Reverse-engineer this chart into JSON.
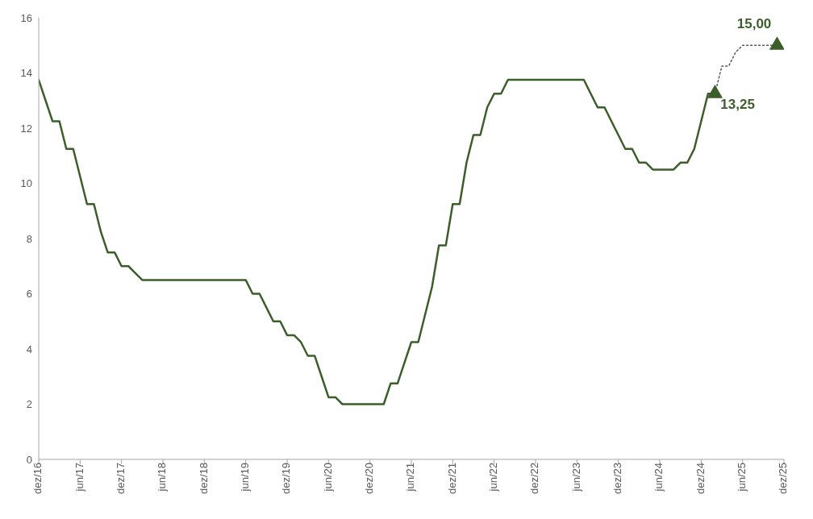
{
  "chart_data": {
    "type": "line",
    "xlim": [
      "2016-12",
      "2025-12"
    ],
    "xticks": [
      {
        "value": "2016-12",
        "label": "dez/16"
      },
      {
        "value": "2017-06",
        "label": "jun/17"
      },
      {
        "value": "2017-12",
        "label": "dez/17"
      },
      {
        "value": "2018-06",
        "label": "jun/18"
      },
      {
        "value": "2018-12",
        "label": "dez/18"
      },
      {
        "value": "2019-06",
        "label": "jun/19"
      },
      {
        "value": "2019-12",
        "label": "dez/19"
      },
      {
        "value": "2020-06",
        "label": "jun/20"
      },
      {
        "value": "2020-12",
        "label": "dez/20"
      },
      {
        "value": "2021-06",
        "label": "jun/21"
      },
      {
        "value": "2021-12",
        "label": "dez/21"
      },
      {
        "value": "2022-06",
        "label": "jun/22"
      },
      {
        "value": "2022-12",
        "label": "dez/22"
      },
      {
        "value": "2023-06",
        "label": "jun/23"
      },
      {
        "value": "2023-12",
        "label": "dez/23"
      },
      {
        "value": "2024-06",
        "label": "jun/24"
      },
      {
        "value": "2024-12",
        "label": "dez/24"
      },
      {
        "value": "2025-06",
        "label": "jun/25"
      },
      {
        "value": "2025-12",
        "label": "dez/25"
      }
    ],
    "ylim": [
      0,
      16
    ],
    "yticks": [
      0,
      2,
      4,
      6,
      8,
      10,
      12,
      14,
      16
    ],
    "grid": false,
    "series": [
      {
        "color": "#3b5e2b",
        "line_style": "solid",
        "marker": "none",
        "x": [
          "2016-12",
          "2017-01",
          "2017-02",
          "2017-03",
          "2017-04",
          "2017-05",
          "2017-06",
          "2017-07",
          "2017-08",
          "2017-09",
          "2017-10",
          "2017-11",
          "2017-12",
          "2018-01",
          "2018-02",
          "2018-03",
          "2018-06",
          "2018-12",
          "2019-06",
          "2019-07",
          "2019-08",
          "2019-09",
          "2019-10",
          "2019-11",
          "2019-12",
          "2020-01",
          "2020-02",
          "2020-03",
          "2020-04",
          "2020-05",
          "2020-06",
          "2020-07",
          "2020-08",
          "2021-02",
          "2021-03",
          "2021-04",
          "2021-05",
          "2021-06",
          "2021-07",
          "2021-08",
          "2021-09",
          "2021-10",
          "2021-11",
          "2021-12",
          "2022-01",
          "2022-02",
          "2022-03",
          "2022-04",
          "2022-05",
          "2022-06",
          "2022-07",
          "2022-08",
          "2023-07",
          "2023-08",
          "2023-09",
          "2023-10",
          "2023-11",
          "2023-12",
          "2024-01",
          "2024-02",
          "2024-03",
          "2024-04",
          "2024-05",
          "2024-08",
          "2024-09",
          "2024-10",
          "2024-11",
          "2024-12",
          "2025-01",
          "2025-02"
        ],
        "values": [
          13.75,
          13.0,
          12.25,
          12.25,
          11.25,
          11.25,
          10.25,
          9.25,
          9.25,
          8.25,
          7.5,
          7.5,
          7.0,
          7.0,
          6.75,
          6.5,
          6.5,
          6.5,
          6.5,
          6.0,
          6.0,
          5.5,
          5.0,
          5.0,
          4.5,
          4.5,
          4.25,
          3.75,
          3.75,
          3.0,
          2.25,
          2.25,
          2.0,
          2.0,
          2.75,
          2.75,
          3.5,
          4.25,
          4.25,
          5.25,
          6.25,
          7.75,
          7.75,
          9.25,
          9.25,
          10.75,
          11.75,
          11.75,
          12.75,
          13.25,
          13.25,
          13.75,
          13.75,
          13.25,
          12.75,
          12.75,
          12.25,
          11.75,
          11.25,
          11.25,
          10.75,
          10.75,
          10.5,
          10.5,
          10.75,
          10.75,
          11.25,
          12.25,
          13.25,
          13.25
        ]
      },
      {
        "type": "line",
        "color": "#595959",
        "line_style": "dotted",
        "marker": "none",
        "x": [
          "2025-02",
          "2025-03",
          "2025-04",
          "2025-05",
          "2025-06",
          "2025-11"
        ],
        "values": [
          13.25,
          14.25,
          14.25,
          14.75,
          15.0,
          15.0
        ]
      },
      {
        "type": "scatter",
        "color": "#3b5e2b",
        "marker": "triangle",
        "x": [
          "2025-02",
          "2025-11"
        ],
        "values": [
          13.25,
          15.0
        ],
        "value_labels": [
          "13,25",
          "15,00"
        ]
      }
    ]
  }
}
